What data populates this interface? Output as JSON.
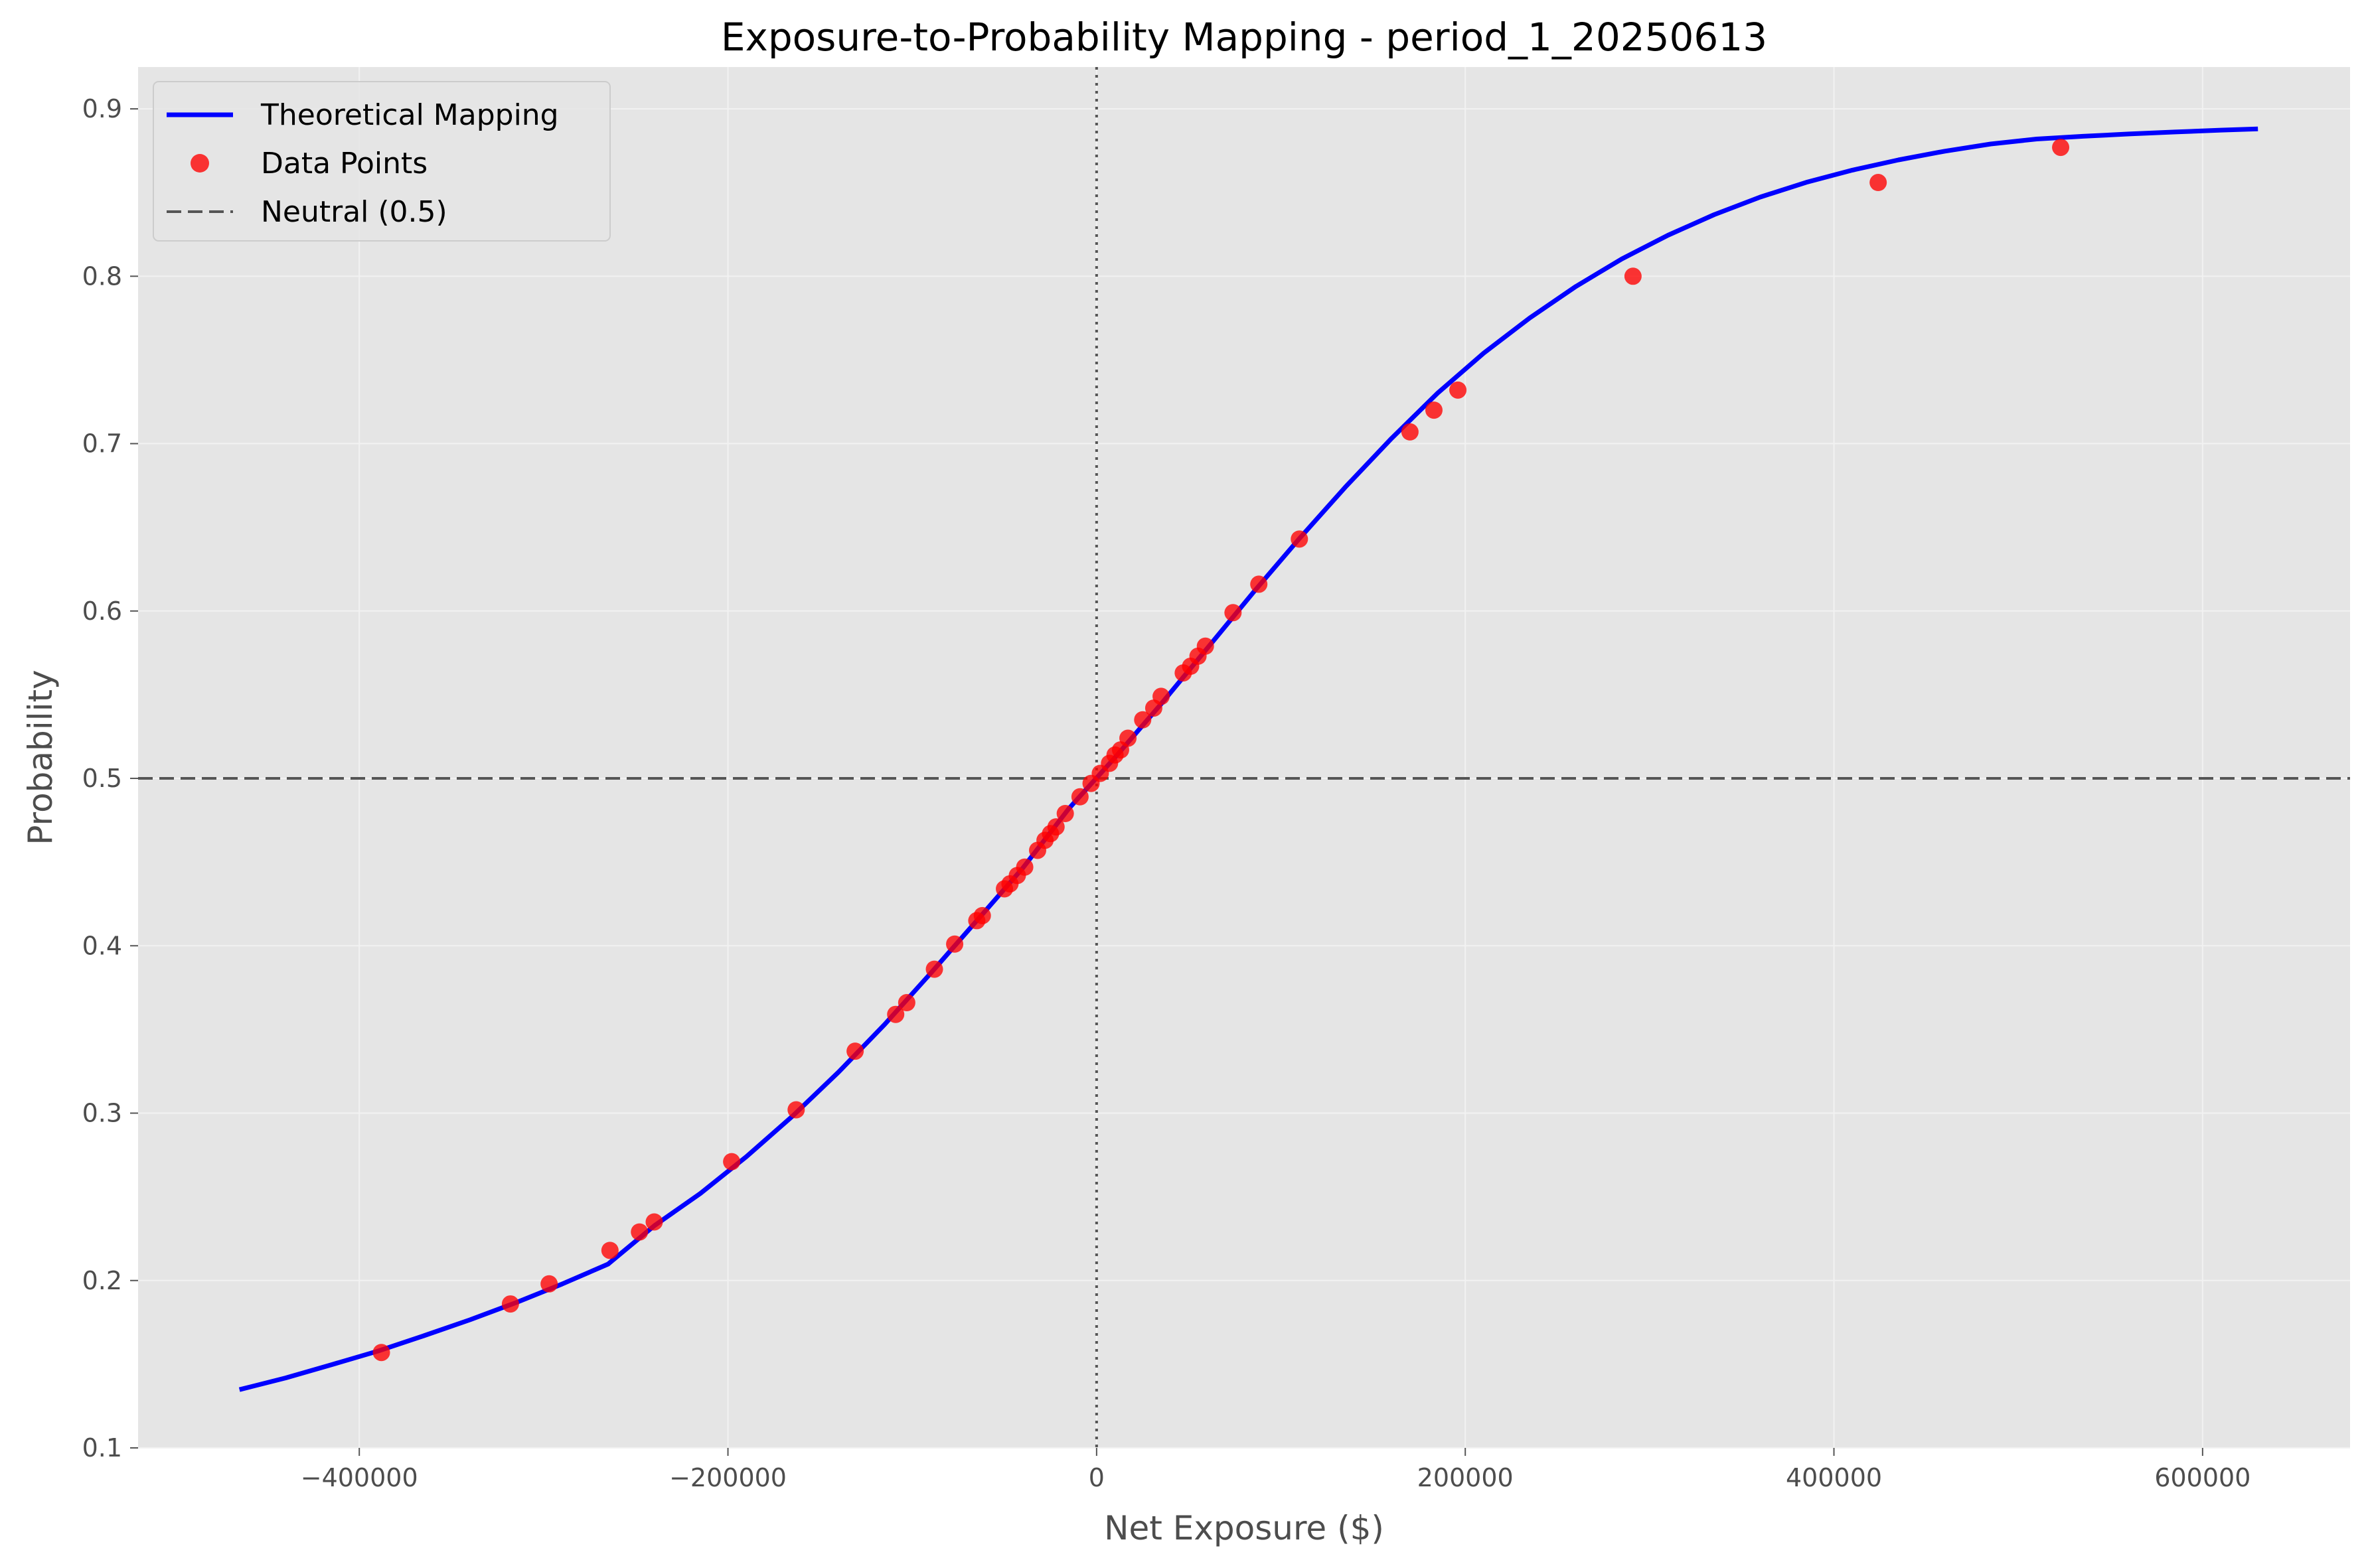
{
  "chart_data": {
    "type": "scatter",
    "title": "Exposure-to-Probability Mapping - period_1_20250613",
    "xlabel": "Net Exposure ($)",
    "ylabel": "Probability",
    "xlim": [
      -520000,
      680000
    ],
    "ylim": [
      0.1,
      0.925
    ],
    "x_ticks": [
      -400000,
      -200000,
      0,
      200000,
      400000,
      600000
    ],
    "x_tick_labels": [
      "−400000",
      "−200000",
      "0",
      "200000",
      "400000",
      "600000"
    ],
    "y_ticks": [
      0.1,
      0.2,
      0.3,
      0.4,
      0.5,
      0.6,
      0.7,
      0.8,
      0.9
    ],
    "y_tick_labels": [
      "0.1",
      "0.2",
      "0.3",
      "0.4",
      "0.5",
      "0.6",
      "0.7",
      "0.8",
      "0.9"
    ],
    "grid": true,
    "legend_position": "top-left",
    "background_color": "#e5e5e5",
    "series": [
      {
        "name": "Theoretical Mapping",
        "kind": "line",
        "color": "#0000ff",
        "x": [
          -465000,
          -440000,
          -415000,
          -390000,
          -365000,
          -340000,
          -315000,
          -290000,
          -265000,
          -240000,
          -215000,
          -190000,
          -165000,
          -140000,
          -115000,
          -90000,
          -65000,
          -40000,
          -15000,
          10000,
          35000,
          60000,
          85000,
          110000,
          135000,
          160000,
          185000,
          210000,
          235000,
          260000,
          285000,
          310000,
          335000,
          360000,
          385000,
          410000,
          435000,
          460000,
          485000,
          510000,
          535000,
          560000,
          585000,
          610000,
          630000
        ],
        "y": [
          0.1348,
          0.1418,
          0.1497,
          0.1578,
          0.167,
          0.1765,
          0.1868,
          0.1979,
          0.2098,
          0.2327,
          0.252,
          0.274,
          0.2982,
          0.3245,
          0.353,
          0.3836,
          0.415,
          0.4465,
          0.482,
          0.5125,
          0.5445,
          0.5777,
          0.6111,
          0.6433,
          0.6741,
          0.7031,
          0.7302,
          0.7541,
          0.7751,
          0.7939,
          0.8104,
          0.8245,
          0.8368,
          0.8473,
          0.8561,
          0.8634,
          0.8695,
          0.8747,
          0.879,
          0.882,
          0.8836,
          0.885,
          0.8862,
          0.8873,
          0.888
        ]
      },
      {
        "name": "Data Points",
        "kind": "scatter",
        "color": "#ff0000",
        "x": [
          -388000,
          -318000,
          -297000,
          -264000,
          -248000,
          -240000,
          -198000,
          -163000,
          -131000,
          -109000,
          -103000,
          -88000,
          -77000,
          -65000,
          -62000,
          -50000,
          -47000,
          -43000,
          -39000,
          -32000,
          -28000,
          -25000,
          -22000,
          -17000,
          -9000,
          -3000,
          2000,
          7000,
          10000,
          13000,
          17000,
          25000,
          31000,
          35000,
          47000,
          51000,
          55000,
          59000,
          74000,
          88000,
          110000,
          170000,
          183000,
          196000,
          291000,
          424000,
          523000
        ],
        "y": [
          0.157,
          0.186,
          0.198,
          0.218,
          0.229,
          0.235,
          0.271,
          0.302,
          0.337,
          0.359,
          0.366,
          0.386,
          0.401,
          0.415,
          0.418,
          0.434,
          0.437,
          0.442,
          0.447,
          0.457,
          0.463,
          0.467,
          0.471,
          0.479,
          0.489,
          0.497,
          0.503,
          0.509,
          0.514,
          0.517,
          0.524,
          0.535,
          0.542,
          0.549,
          0.563,
          0.567,
          0.573,
          0.579,
          0.599,
          0.616,
          0.643,
          0.707,
          0.72,
          0.732,
          0.8,
          0.856,
          0.877
        ]
      },
      {
        "name": "Neutral (0.5)",
        "kind": "hline",
        "color": "#555555",
        "y_value": 0.5
      }
    ],
    "reference_lines": {
      "vertical_x": 0
    }
  }
}
